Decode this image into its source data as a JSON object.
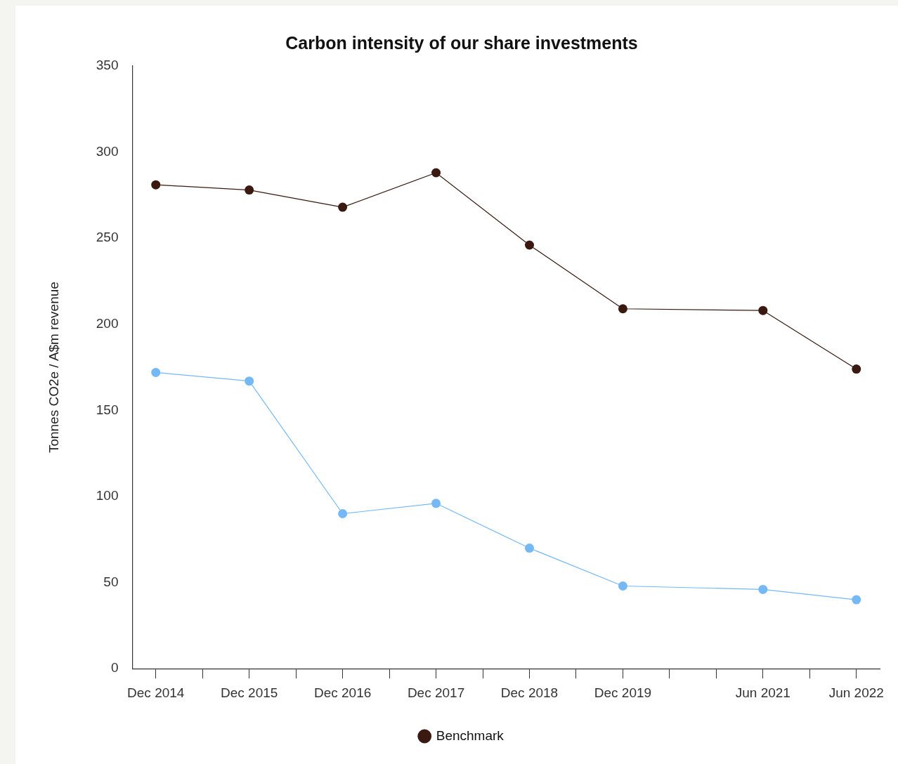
{
  "chart_data": {
    "type": "line",
    "title": "Carbon intensity of our share investments",
    "ylabel": "Tonnes CO2e / A$m revenue",
    "x": [
      "2014-12",
      "2015-12",
      "2016-12",
      "2017-12",
      "2018-12",
      "2019-12",
      "2021-06",
      "2022-06"
    ],
    "series": [
      {
        "color": "#74b9f5",
        "values": [
          172,
          167,
          90,
          96,
          70,
          48,
          46,
          40
        ]
      },
      {
        "name": "Benchmark",
        "color": "#3a1a10",
        "values": [
          281,
          278,
          268,
          288,
          246,
          209,
          208,
          174
        ]
      }
    ],
    "xlim": [
      "2014-09",
      "2022-09"
    ],
    "xticks": [
      {
        "value": "2014-12",
        "label": "Dec 2014"
      },
      {
        "value": "2015-06",
        "label": null
      },
      {
        "value": "2015-12",
        "label": "Dec 2015"
      },
      {
        "value": "2016-06",
        "label": null
      },
      {
        "value": "2016-12",
        "label": "Dec 2016"
      },
      {
        "value": "2017-06",
        "label": null
      },
      {
        "value": "2017-12",
        "label": "Dec 2017"
      },
      {
        "value": "2018-06",
        "label": null
      },
      {
        "value": "2018-12",
        "label": "Dec 2018"
      },
      {
        "value": "2019-06",
        "label": null
      },
      {
        "value": "2019-12",
        "label": "Dec 2019"
      },
      {
        "value": "2020-06",
        "label": null
      },
      {
        "value": "2020-12",
        "label": null
      },
      {
        "value": "2021-06",
        "label": "Jun 2021"
      },
      {
        "value": "2021-12",
        "label": null
      },
      {
        "value": "2022-06",
        "label": "Jun 2022"
      }
    ],
    "ylim": [
      0,
      350
    ],
    "yticks": [
      0,
      50,
      100,
      150,
      200,
      250,
      300,
      350
    ],
    "legend": "bottom",
    "marker": "circle",
    "line_style": "solid"
  }
}
